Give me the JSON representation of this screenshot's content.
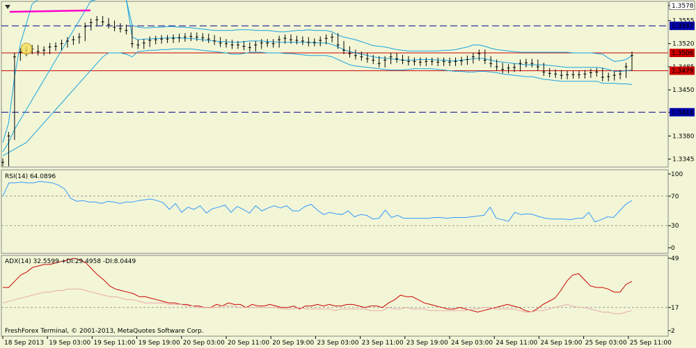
{
  "chart_data": [
    {
      "type": "candlestick",
      "symbol_hint": "",
      "y_ticks": [
        "1.3578",
        "1.3555",
        "1.3520",
        "1.3485",
        "1.3450",
        "1.3416",
        "1.3380",
        "1.3345"
      ],
      "ylim": [
        1.3335,
        1.3582
      ],
      "price_labels": [
        {
          "value": 1.3578,
          "label": "1.3578",
          "color": "#ffffff",
          "text_color": "#000000"
        },
        {
          "value": 1.3547,
          "label": "1.3547",
          "color": "#0000aa",
          "text_color": "#ffffff",
          "line": "dash"
        },
        {
          "value": 1.3506,
          "label": "1.3506",
          "color": "#cc0000",
          "text_color": "#ffffff",
          "line": "solid"
        },
        {
          "value": 1.3479,
          "label": "1.3479",
          "color": "#cc0000",
          "text_color": "#ffffff",
          "line": "solid"
        },
        {
          "value": 1.3416,
          "label": "1.3416",
          "color": "#0000aa",
          "text_color": "#ffffff",
          "line": "dash"
        }
      ],
      "closes": [
        1.334,
        1.338,
        1.35,
        1.3507,
        1.351,
        1.3512,
        1.3508,
        1.351,
        1.3515,
        1.3516,
        1.352,
        1.3524,
        1.3526,
        1.353,
        1.3546,
        1.3552,
        1.3556,
        1.3553,
        1.3549,
        1.3545,
        1.3543,
        1.354,
        1.352,
        1.3518,
        1.3521,
        1.3525,
        1.3526,
        1.3527,
        1.3527,
        1.3528,
        1.3529,
        1.353,
        1.3531,
        1.353,
        1.3529,
        1.3527,
        1.3524,
        1.3521,
        1.352,
        1.3518,
        1.3518,
        1.3516,
        1.3514,
        1.3518,
        1.3521,
        1.3521,
        1.352,
        1.3526,
        1.3528,
        1.3526,
        1.3525,
        1.3524,
        1.3522,
        1.3522,
        1.3525,
        1.3528,
        1.353,
        1.3518,
        1.351,
        1.3505,
        1.3502,
        1.35,
        1.3497,
        1.3495,
        1.349,
        1.3495,
        1.35,
        1.3497,
        1.3495,
        1.3493,
        1.3493,
        1.3492,
        1.3493,
        1.3493,
        1.3492,
        1.3493,
        1.3492,
        1.3493,
        1.3494,
        1.3496,
        1.35,
        1.3505,
        1.3495,
        1.349,
        1.3485,
        1.3481,
        1.3483,
        1.3484,
        1.349,
        1.3491,
        1.349,
        1.3485,
        1.3477,
        1.3475,
        1.3474,
        1.3472,
        1.3473,
        1.3473,
        1.3473,
        1.3474,
        1.3476,
        1.3477,
        1.3469,
        1.347,
        1.3472,
        1.3474,
        1.3485,
        1.3502
      ],
      "upper_band": [
        1.337,
        1.34,
        1.347,
        1.352,
        1.355,
        1.358,
        1.36,
        1.36,
        1.36,
        1.36,
        1.36,
        1.36,
        1.36,
        1.36,
        1.36,
        1.36,
        1.36,
        1.36,
        1.36,
        1.36,
        1.36,
        1.36,
        1.3548,
        1.3545,
        1.3544,
        1.3544,
        1.3545,
        1.3545,
        1.3546,
        1.3546,
        1.3545,
        1.3545,
        1.3544,
        1.3543,
        1.3542,
        1.3541,
        1.354,
        1.354,
        1.354,
        1.354,
        1.3541,
        1.3541,
        1.3541,
        1.354,
        1.354,
        1.354,
        1.3539,
        1.3538,
        1.3538,
        1.3539,
        1.354,
        1.354,
        1.3541,
        1.354,
        1.354,
        1.354,
        1.3538,
        1.3533,
        1.353,
        1.3528,
        1.3526,
        1.3523,
        1.352,
        1.3517,
        1.3516,
        1.3515,
        1.3513,
        1.3511,
        1.351,
        1.3509,
        1.3509,
        1.3509,
        1.3509,
        1.3509,
        1.3509,
        1.351,
        1.351,
        1.3511,
        1.3513,
        1.3515,
        1.3518,
        1.3518,
        1.3516,
        1.3513,
        1.3511,
        1.351,
        1.3509,
        1.3508,
        1.3507,
        1.3507,
        1.3507,
        1.3507,
        1.3507,
        1.3507,
        1.3507,
        1.3507,
        1.3507,
        1.3506,
        1.3506,
        1.3506,
        1.3506,
        1.3505,
        1.3504,
        1.3498,
        1.3493,
        1.3494,
        1.3496,
        1.3502
      ],
      "lower_band": [
        1.335,
        1.3355,
        1.336,
        1.3365,
        1.337,
        1.338,
        1.339,
        1.34,
        1.341,
        1.342,
        1.343,
        1.344,
        1.345,
        1.346,
        1.347,
        1.348,
        1.349,
        1.35,
        1.3506,
        1.3506,
        1.3506,
        1.3504,
        1.35,
        1.3508,
        1.3509,
        1.351,
        1.351,
        1.3511,
        1.3511,
        1.3512,
        1.3512,
        1.3512,
        1.3512,
        1.3511,
        1.351,
        1.3509,
        1.3508,
        1.3507,
        1.3506,
        1.3504,
        1.3504,
        1.3505,
        1.3507,
        1.3507,
        1.3507,
        1.3506,
        1.3506,
        1.3506,
        1.3505,
        1.3505,
        1.3504,
        1.3503,
        1.3502,
        1.3502,
        1.3502,
        1.3502,
        1.35,
        1.3496,
        1.3492,
        1.3488,
        1.3486,
        1.3485,
        1.3484,
        1.3483,
        1.3482,
        1.3481,
        1.348,
        1.348,
        1.348,
        1.3481,
        1.3482,
        1.3482,
        1.3482,
        1.3482,
        1.3481,
        1.348,
        1.3479,
        1.3478,
        1.3478,
        1.3477,
        1.3477,
        1.3478,
        1.3478,
        1.3477,
        1.3476,
        1.3474,
        1.3473,
        1.3472,
        1.3471,
        1.347,
        1.347,
        1.3468,
        1.3466,
        1.3465,
        1.3464,
        1.3463,
        1.3463,
        1.3463,
        1.3463,
        1.3463,
        1.3463,
        1.3463,
        1.346,
        1.346,
        1.346,
        1.3459,
        1.3459,
        1.3458
      ],
      "middle_band": [
        1.3356,
        1.337,
        1.339,
        1.3405,
        1.342,
        1.3435,
        1.345,
        1.3465,
        1.348,
        1.3495,
        1.351,
        1.3525,
        1.354,
        1.3555,
        1.357,
        1.3585,
        1.3598,
        1.36,
        1.36,
        1.36,
        1.36,
        1.36,
        1.353,
        1.3526,
        1.3527,
        1.3527,
        1.3528,
        1.3528,
        1.3529,
        1.3529,
        1.3529,
        1.3528,
        1.3528,
        1.3527,
        1.3526,
        1.3525,
        1.3524,
        1.3523,
        1.3523,
        1.3522,
        1.3522,
        1.3523,
        1.3524,
        1.3524,
        1.3524,
        1.3523,
        1.3523,
        1.3522,
        1.3522,
        1.3522,
        1.3522,
        1.3522,
        1.3522,
        1.3521,
        1.3521,
        1.3521,
        1.3519,
        1.3515,
        1.3511,
        1.3508,
        1.3506,
        1.3504,
        1.3502,
        1.35,
        1.3499,
        1.3498,
        1.3497,
        1.3496,
        1.3495,
        1.3495,
        1.3495,
        1.3496,
        1.3496,
        1.3496,
        1.3495,
        1.3495,
        1.3494,
        1.3494,
        1.3495,
        1.3496,
        1.3497,
        1.3498,
        1.3497,
        1.3495,
        1.3493,
        1.3492,
        1.3491,
        1.349,
        1.3489,
        1.3488,
        1.3488,
        1.3488,
        1.3488,
        1.3487,
        1.3486,
        1.3485,
        1.3484,
        1.3484,
        1.3484,
        1.3484,
        1.3484,
        1.3484,
        1.3483,
        1.3481,
        1.3478,
        1.3478,
        1.3479,
        1.348
      ],
      "x_labels": [
        "18 Sep 2013",
        "19 Sep 03:00",
        "19 Sep 11:00",
        "19 Sep 19:00",
        "20 Sep 03:00",
        "20 Sep 11:00",
        "20 Sep 19:00",
        "23 Sep 03:00",
        "23 Sep 11:00",
        "23 Sep 19:00",
        "24 Sep 03:00",
        "24 Sep 11:00",
        "24 Sep 19:00",
        "25 Sep 03:00",
        "25 Sep 11:00"
      ]
    },
    {
      "type": "line",
      "label": "RSI(14) 64.0896",
      "y_ticks": [
        "100",
        "70",
        "30",
        "0"
      ],
      "levels": [
        70,
        30
      ],
      "ylim": [
        0,
        100
      ],
      "values": [
        70,
        88,
        88,
        89,
        88,
        88,
        90,
        89,
        88,
        85,
        80,
        67,
        63,
        64,
        62,
        62,
        60,
        63,
        62,
        60,
        62,
        62,
        64,
        65,
        66,
        64,
        61,
        52,
        60,
        48,
        55,
        52,
        57,
        47,
        53,
        55,
        58,
        48,
        56,
        52,
        47,
        57,
        50,
        54,
        57,
        54,
        57,
        50,
        50,
        56,
        59,
        51,
        45,
        48,
        46,
        45,
        50,
        42,
        45,
        44,
        39,
        40,
        51,
        41,
        44,
        40,
        40,
        40,
        40,
        40,
        41,
        41,
        40,
        41,
        41,
        41,
        42,
        43,
        44,
        55,
        40,
        38,
        36,
        48,
        45,
        46,
        45,
        42,
        40,
        39,
        39,
        39,
        38,
        40,
        40,
        48,
        35,
        38,
        42,
        41,
        50,
        59,
        64
      ],
      "color": "#3399ff"
    },
    {
      "type": "line",
      "label": "ADX(14) 32.5599 +DI:29.4958 -DI:8.0449",
      "y_ticks": [
        "49",
        "17",
        "2"
      ],
      "levels": [
        17
      ],
      "ylim": [
        2,
        49
      ],
      "series": [
        {
          "values": [
            30,
            30,
            34,
            38,
            40,
            43,
            44,
            45,
            45,
            46,
            47,
            48,
            49,
            48,
            46,
            42,
            38,
            35,
            31,
            29,
            28,
            27,
            26,
            24,
            24,
            23,
            22,
            21,
            20,
            20,
            19,
            19,
            18,
            18,
            17,
            17,
            19,
            18,
            20,
            19,
            19,
            17,
            19,
            18,
            18,
            19,
            18,
            17,
            17,
            18,
            16,
            18,
            18,
            19,
            18,
            19,
            18,
            18,
            19,
            19,
            18,
            17,
            18,
            18,
            17,
            20,
            22,
            25,
            24,
            24,
            22,
            20,
            19,
            18,
            17,
            16,
            16,
            17,
            16,
            15,
            14,
            15,
            16,
            17,
            18,
            19,
            18,
            17,
            15,
            14,
            16,
            19,
            21,
            23,
            28,
            34,
            38,
            39,
            35,
            31,
            30,
            30,
            29,
            27,
            27,
            32,
            34
          ],
          "color": "#cc0000"
        },
        {
          "values": [
            20,
            21,
            22,
            23,
            24,
            25,
            26,
            27,
            27,
            28,
            28,
            29,
            29,
            29,
            28,
            27,
            26,
            25,
            24,
            24,
            23,
            22,
            22,
            21,
            20,
            20,
            20,
            20,
            19,
            19,
            19,
            18,
            18,
            17,
            17,
            17,
            17,
            18,
            18,
            18,
            17,
            17,
            17,
            17,
            17,
            17,
            17,
            16,
            16,
            16,
            17,
            16,
            16,
            16,
            16,
            16,
            15,
            16,
            16,
            16,
            16,
            16,
            15,
            15,
            15,
            17,
            16,
            16,
            17,
            16,
            16,
            16,
            15,
            15,
            15,
            15,
            15,
            15,
            15,
            16,
            16,
            17,
            17,
            16,
            16,
            16,
            16,
            15,
            14,
            14,
            15,
            15,
            16,
            17,
            18,
            19,
            18,
            17,
            17,
            16,
            15,
            14,
            14,
            13,
            13,
            14,
            15
          ],
          "color": "#eaa9a9"
        }
      ],
      "footer": "FreshForex Terminal, © 2001-2013, MetaQuotes Software Corp."
    }
  ]
}
